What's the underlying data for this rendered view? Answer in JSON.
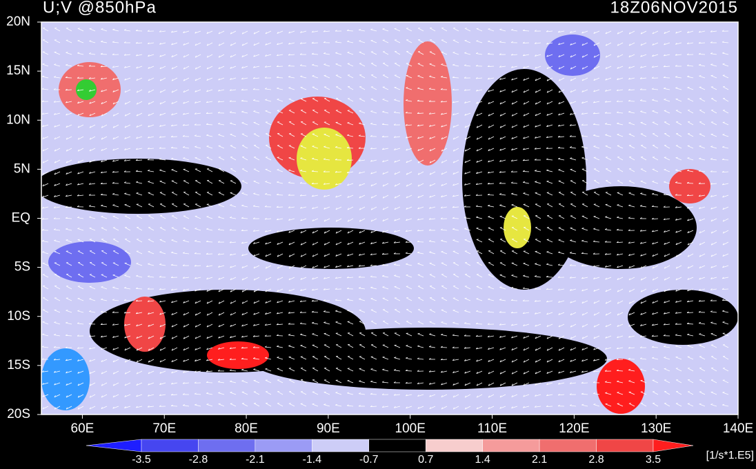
{
  "header": {
    "title": "U;V @850hPa",
    "time": "18Z06NOV2015"
  },
  "map": {
    "lat_labels": [
      "20N",
      "15N",
      "10N",
      "5N",
      "EQ",
      "5S",
      "10S",
      "15S",
      "20S"
    ],
    "lon_labels": [
      "60E",
      "70E",
      "80E",
      "90E",
      "100E",
      "110E",
      "120E",
      "130E",
      "140E"
    ]
  },
  "colorbar": {
    "levels": [
      -3.5,
      -2.8,
      -2.1,
      -1.4,
      -0.7,
      0.7,
      1.4,
      2.1,
      2.8,
      3.5
    ],
    "colors": [
      "#1e1eff",
      "#4646f0",
      "#6e6ef0",
      "#9b9bf5",
      "#cdcdf7",
      "#000000",
      "#f7cdcd",
      "#f59b9b",
      "#f06e6e",
      "#f04646",
      "#ff1e1e"
    ],
    "unit": "[1/s*1.E5]"
  }
}
